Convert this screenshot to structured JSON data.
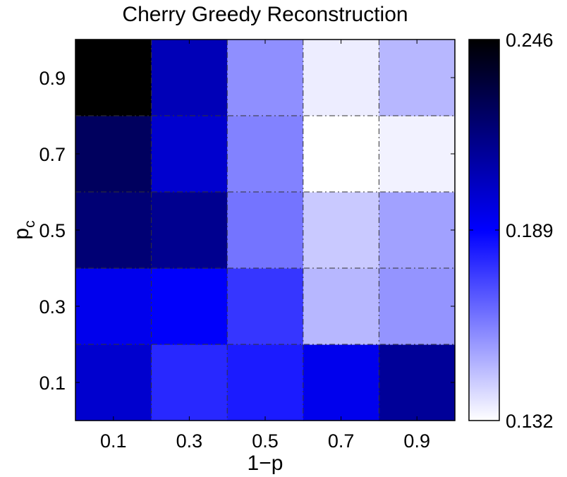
{
  "chart_data": {
    "type": "heatmap",
    "title": "Cherry Greedy Reconstruction",
    "xlabel": "1−p",
    "ylabel": {
      "main": "p",
      "subscript": "c"
    },
    "x": [
      "0.1",
      "0.3",
      "0.5",
      "0.7",
      "0.9"
    ],
    "y": [
      "0.1",
      "0.3",
      "0.5",
      "0.7",
      "0.9"
    ],
    "values": [
      [
        0.2,
        0.18,
        0.183,
        0.193,
        0.212
      ],
      [
        0.193,
        0.19,
        0.177,
        0.148,
        0.156
      ],
      [
        0.22,
        0.214,
        0.163,
        0.144,
        0.153
      ],
      [
        0.225,
        0.2,
        0.16,
        0.132,
        0.135
      ],
      [
        0.246,
        0.205,
        0.157,
        0.136,
        0.148
      ]
    ],
    "colorbar": {
      "min": 0.132,
      "max": 0.246,
      "ticks": [
        "0.132",
        "0.189",
        "0.246"
      ],
      "colors": [
        "#ffffff",
        "#0000ff",
        "#000000"
      ]
    },
    "grid": "dash-dot"
  }
}
